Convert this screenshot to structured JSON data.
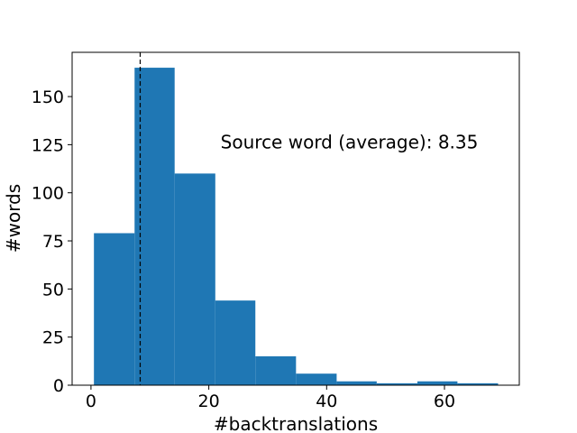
{
  "chart_data": {
    "type": "bar",
    "title": "",
    "xlabel": "#backtranslations",
    "ylabel": "#words",
    "xlim": [
      -3.2,
      72.7
    ],
    "ylim": [
      0,
      173
    ],
    "bins": [
      {
        "x0": 0.5,
        "x1": 7.4,
        "value": 79
      },
      {
        "x0": 7.4,
        "x1": 14.2,
        "value": 165
      },
      {
        "x0": 14.2,
        "x1": 21.1,
        "value": 110
      },
      {
        "x0": 21.1,
        "x1": 27.9,
        "value": 44
      },
      {
        "x0": 27.9,
        "x1": 34.8,
        "value": 15
      },
      {
        "x0": 34.8,
        "x1": 41.7,
        "value": 6
      },
      {
        "x0": 41.7,
        "x1": 48.5,
        "value": 2
      },
      {
        "x0": 48.5,
        "x1": 55.4,
        "value": 1
      },
      {
        "x0": 55.4,
        "x1": 62.2,
        "value": 2
      },
      {
        "x0": 62.2,
        "x1": 69.1,
        "value": 1
      }
    ],
    "x_ticks": [
      0,
      20,
      40,
      60
    ],
    "x_tick_labels": [
      "0",
      "20",
      "40",
      "60"
    ],
    "y_ticks": [
      0,
      25,
      50,
      75,
      100,
      125,
      150
    ],
    "y_tick_labels": [
      "0",
      "25",
      "50",
      "75",
      "100",
      "125",
      "150"
    ],
    "mean_line": {
      "x": 8.35,
      "style": "dashed"
    },
    "annotation": {
      "text": "Source word (average): 8.35",
      "x": 22,
      "y": 123
    },
    "bar_color": "#1f77b4",
    "grid": false,
    "legend": "none"
  }
}
